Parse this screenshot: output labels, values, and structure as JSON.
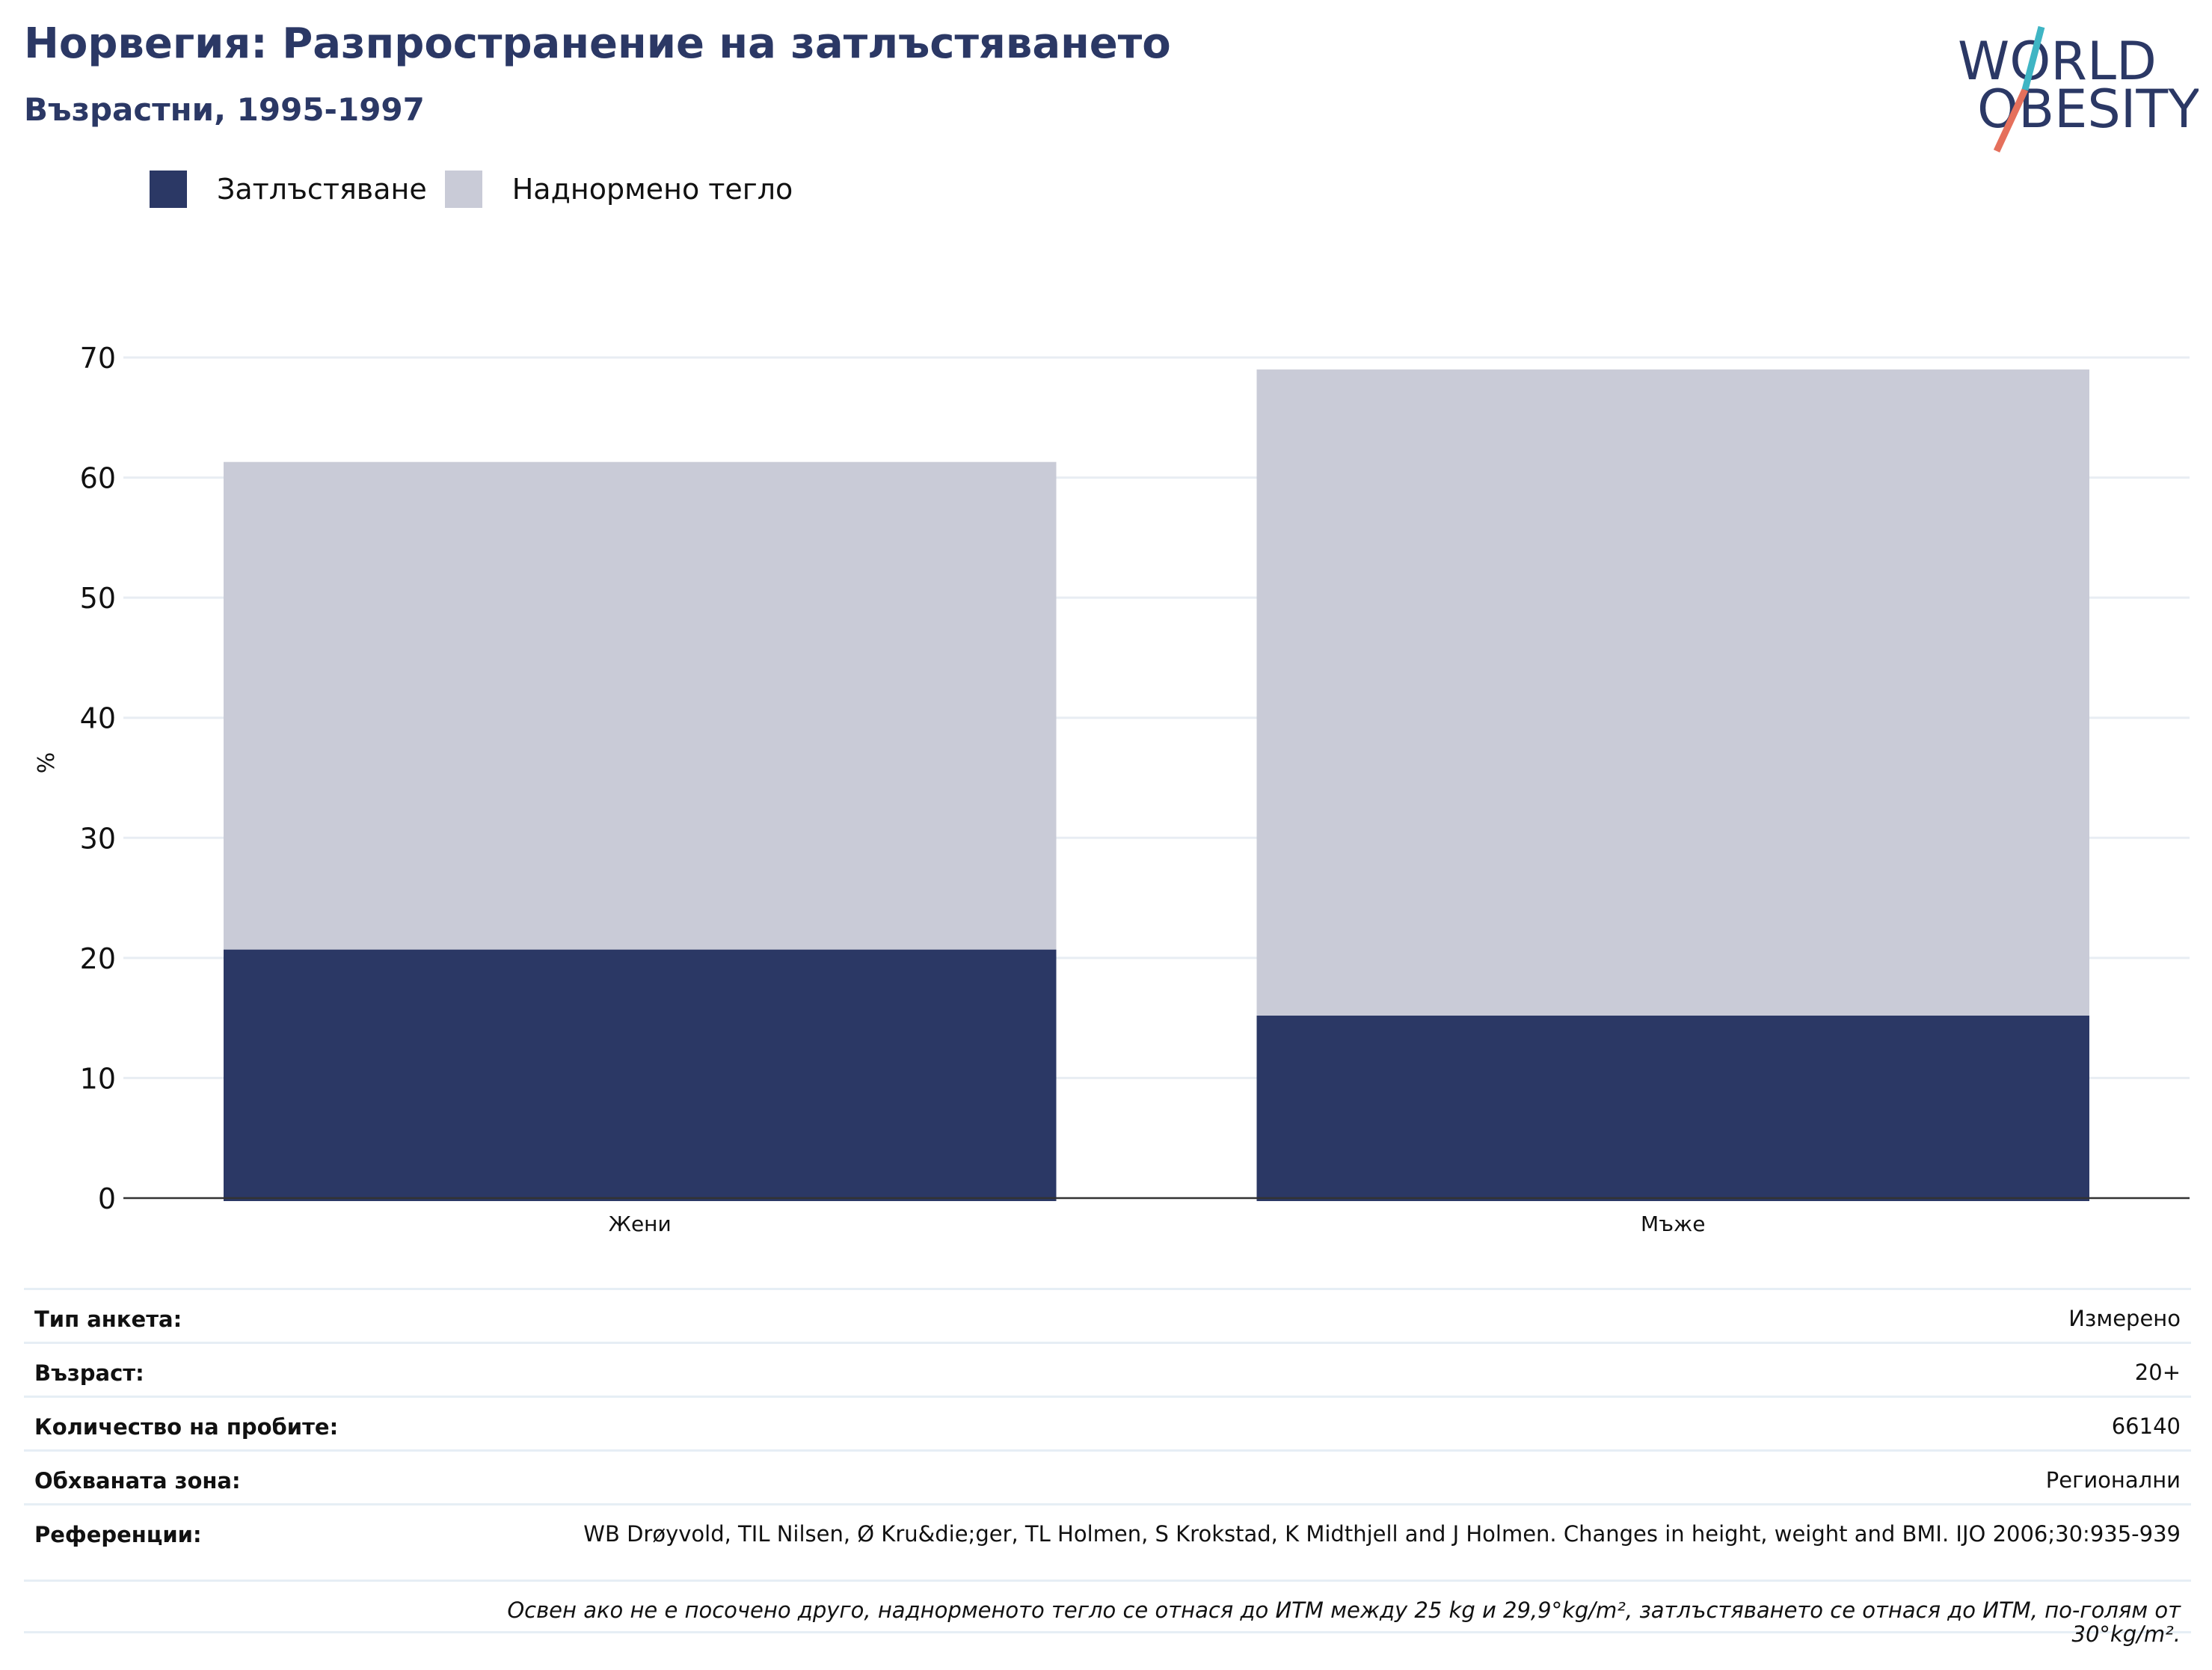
{
  "header": {
    "title": "Норвегия: Разпространение на затлъстяването",
    "subtitle": "Възрастни, 1995-1997"
  },
  "logo": {
    "line1": "WORLD",
    "line2": "OBESITY"
  },
  "colors": {
    "obesity": "#2b3865",
    "overweight": "#c9cbd7",
    "text": "#2b3865",
    "accent_teal": "#3fb5c4",
    "accent_red": "#e5705c"
  },
  "legend": {
    "obesity_label": "Затлъстяване",
    "overweight_label": "Наднормено тегло"
  },
  "chart_data": {
    "type": "bar",
    "stacked": true,
    "categories": [
      "Жени",
      "Мъже"
    ],
    "series": [
      {
        "name": "Затлъстяване",
        "values": [
          20.7,
          15.2
        ]
      },
      {
        "name": "Наднормено тегло",
        "values": [
          40.6,
          53.8
        ]
      }
    ],
    "totals": [
      61.3,
      69.0
    ],
    "ylabel": "%",
    "ylim": [
      0,
      70
    ],
    "yticks": [
      0,
      10,
      20,
      30,
      40,
      50,
      60,
      70
    ],
    "grid": true
  },
  "meta": {
    "survey_label": "Тип анкета:",
    "survey_value": "Измерено",
    "age_label": "Възраст:",
    "age_value": "20+",
    "sample_label": "Количество на пробите:",
    "sample_value": "66140",
    "area_label": "Обхваната зона:",
    "area_value": "Регионални",
    "refs_label": "Референции:",
    "refs_value": "WB Drøyvold, TIL Nilsen, Ø Kru&die;ger, TL Holmen, S Krokstad, K Midthjell and J Holmen. Changes in height, weight and BMI. IJO 2006;30:935-939",
    "note": "Освен ако не е посочено друго, наднорменото тегло се отнася до ИТМ между 25 kg и 29,9°kg/m², затлъстяването се отнася до ИТМ, по-голям от 30°kg/m²."
  }
}
